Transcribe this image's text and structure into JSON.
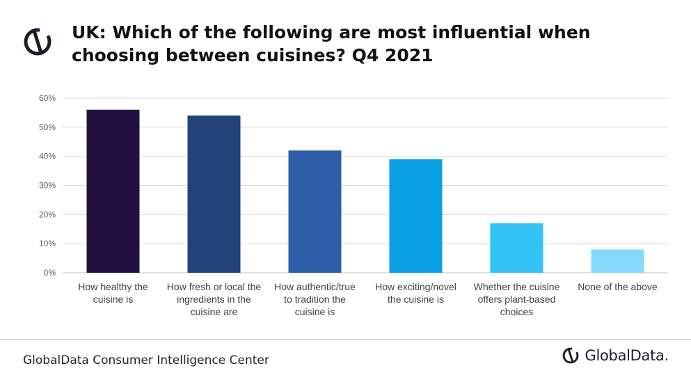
{
  "header": {
    "title": "UK: Which of the following are most influential when choosing between cuisines? Q4 2021",
    "logo_icon": "globaldata-mark-icon"
  },
  "footer": {
    "source": "GlobalData Consumer Intelligence Center",
    "brand": "GlobalData."
  },
  "chart_data": {
    "type": "bar",
    "categories": [
      [
        "How healthy the",
        "cuisine is"
      ],
      [
        "How fresh or local the",
        "ingredients in the",
        "cuisine are"
      ],
      [
        "How authentic/true",
        "to tradition the",
        "cuisine is"
      ],
      [
        "How exciting/novel",
        "the cuisine is"
      ],
      [
        "Whether the cuisine",
        "offers plant-based",
        "choices"
      ],
      [
        "None of the above"
      ]
    ],
    "values": [
      56,
      54,
      42,
      39,
      17,
      8
    ],
    "colors": [
      "#231040",
      "#22427a",
      "#2e5ea8",
      "#0aa0e6",
      "#33c3f5",
      "#86d9fa"
    ],
    "yticks": [
      "0%",
      "10%",
      "20%",
      "30%",
      "40%",
      "50%",
      "60%"
    ],
    "ylim": [
      0,
      60
    ],
    "grid": true,
    "title": "",
    "xlabel": "",
    "ylabel": ""
  }
}
